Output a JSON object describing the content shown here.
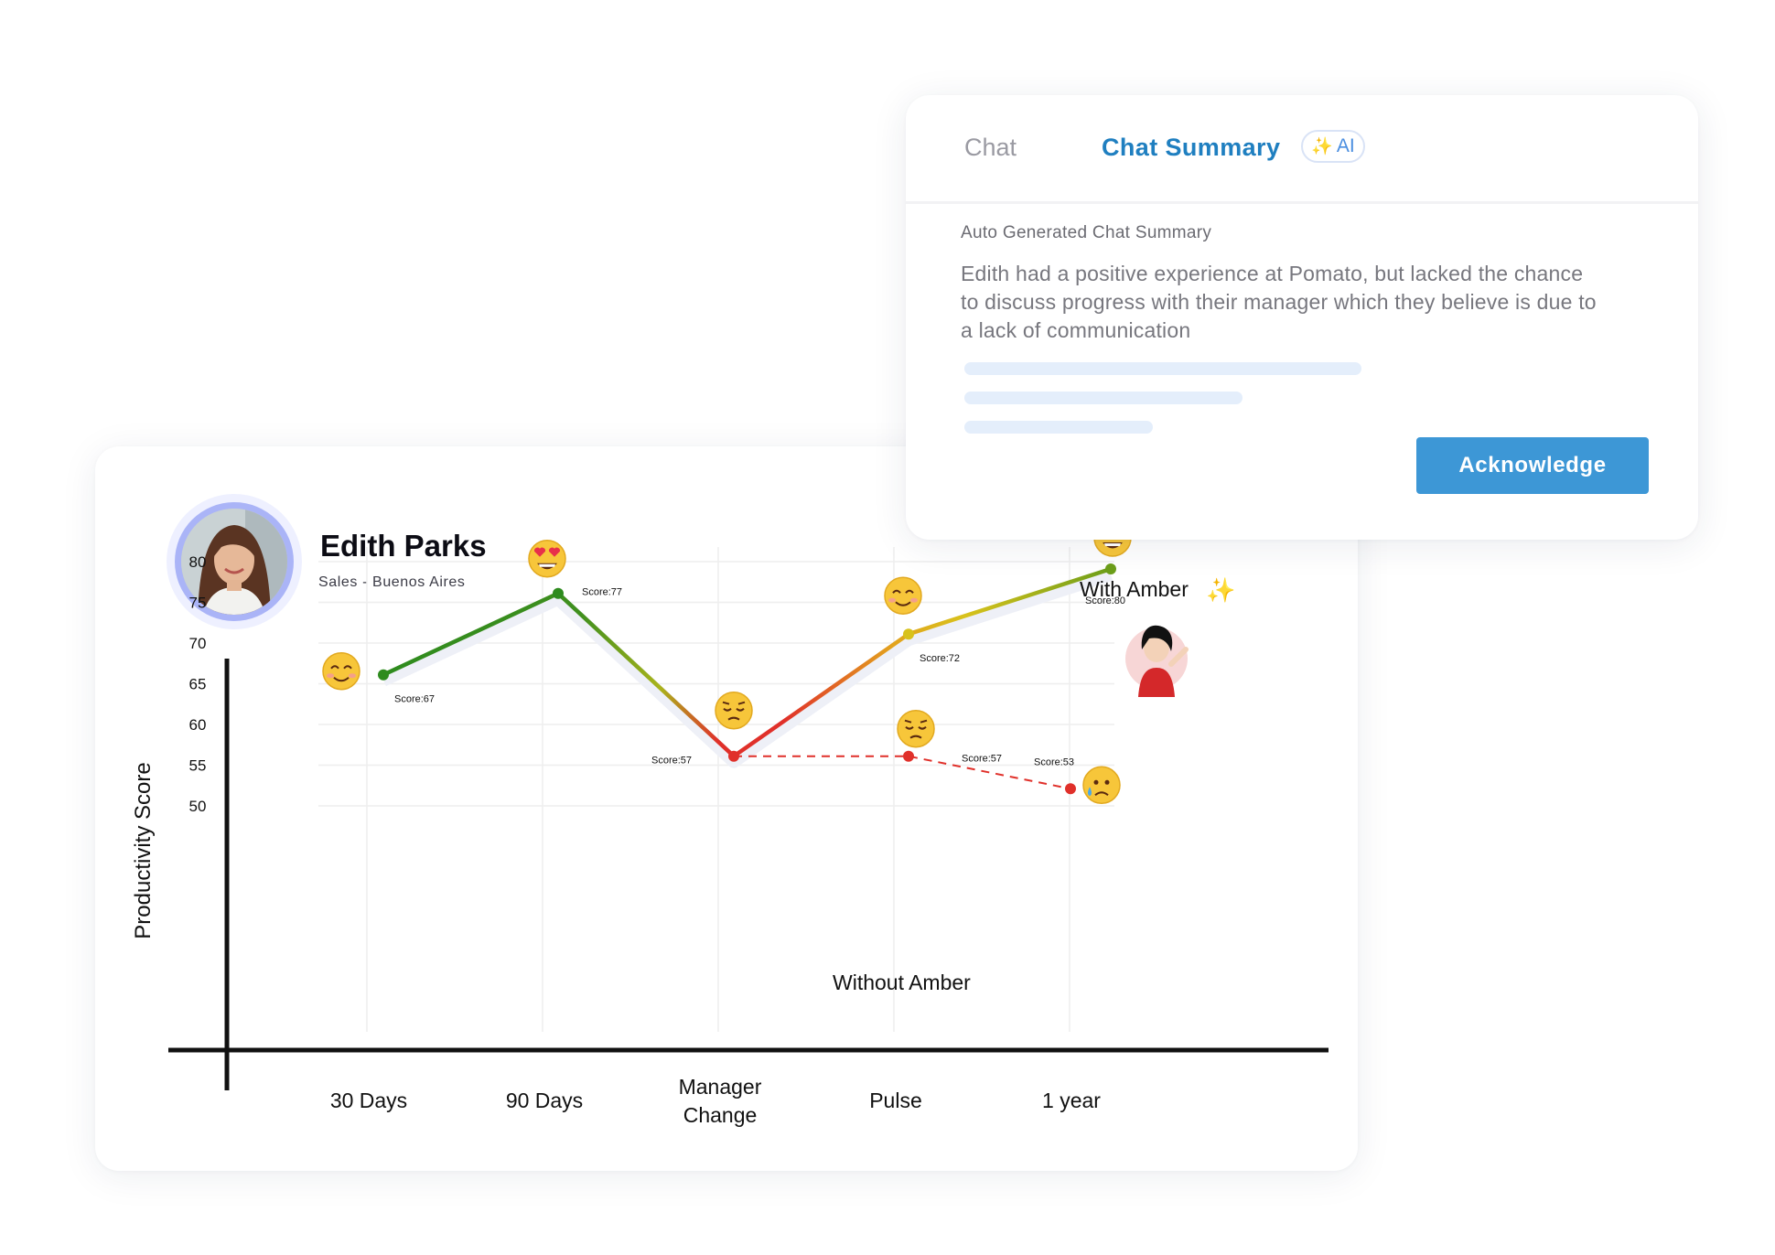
{
  "profile": {
    "name": "Edith Parks",
    "role": "Sales - Buenos Aires"
  },
  "chat_card": {
    "tabs": [
      {
        "label": "Chat",
        "active": false
      },
      {
        "label": "Chat Summary",
        "active": true
      }
    ],
    "ai_badge": "AI",
    "summary_heading": "Auto Generated Chat Summary",
    "summary_text": "Edith had a positive experience at Pomato, but lacked the chance to discuss progress with their manager which they believe is due to a lack of communication",
    "acknowledge_label": "Acknowledge",
    "accent_color": "#3d97d6"
  },
  "chart_data": {
    "type": "line",
    "ylabel": "Productivity Score",
    "yticks": [
      80,
      75,
      70,
      65,
      60,
      55,
      50
    ],
    "categories": [
      "30 Days",
      "90 Days",
      "Manager\nChange",
      "Pulse",
      "1 year"
    ],
    "annotations": {
      "with": "With Amber",
      "without": "Without Amber"
    },
    "series": [
      {
        "key": "with_amber",
        "style": "solid-gradient",
        "points": [
          {
            "category": "30 Days",
            "value": 67,
            "label": "Score:67",
            "mood": "smiling-icon"
          },
          {
            "category": "90 Days",
            "value": 77,
            "label": "Score:77",
            "mood": "heart-eyes-icon"
          },
          {
            "category": "Manager\nChange",
            "value": 57,
            "label": "Score:57",
            "mood": "pensive-icon"
          },
          {
            "category": "Pulse",
            "value": 72,
            "label": "Score:72",
            "mood": "smiling-icon"
          },
          {
            "category": "1 year",
            "value": 80,
            "label": "Score:80",
            "mood": "heart-eyes-icon"
          }
        ]
      },
      {
        "key": "without_amber",
        "style": "dashed-red",
        "points": [
          {
            "category": "Manager\nChange",
            "value": 57,
            "label": "",
            "mood": ""
          },
          {
            "category": "Pulse",
            "value": 57,
            "label": "Score:57",
            "mood": "pensive-icon"
          },
          {
            "category": "1 year",
            "value": 53,
            "label": "Score:53",
            "mood": "crying-icon"
          }
        ]
      }
    ],
    "colors": {
      "good": "#2e8b1e",
      "mid": "#d8c21c",
      "bad": "#e0302a"
    }
  }
}
